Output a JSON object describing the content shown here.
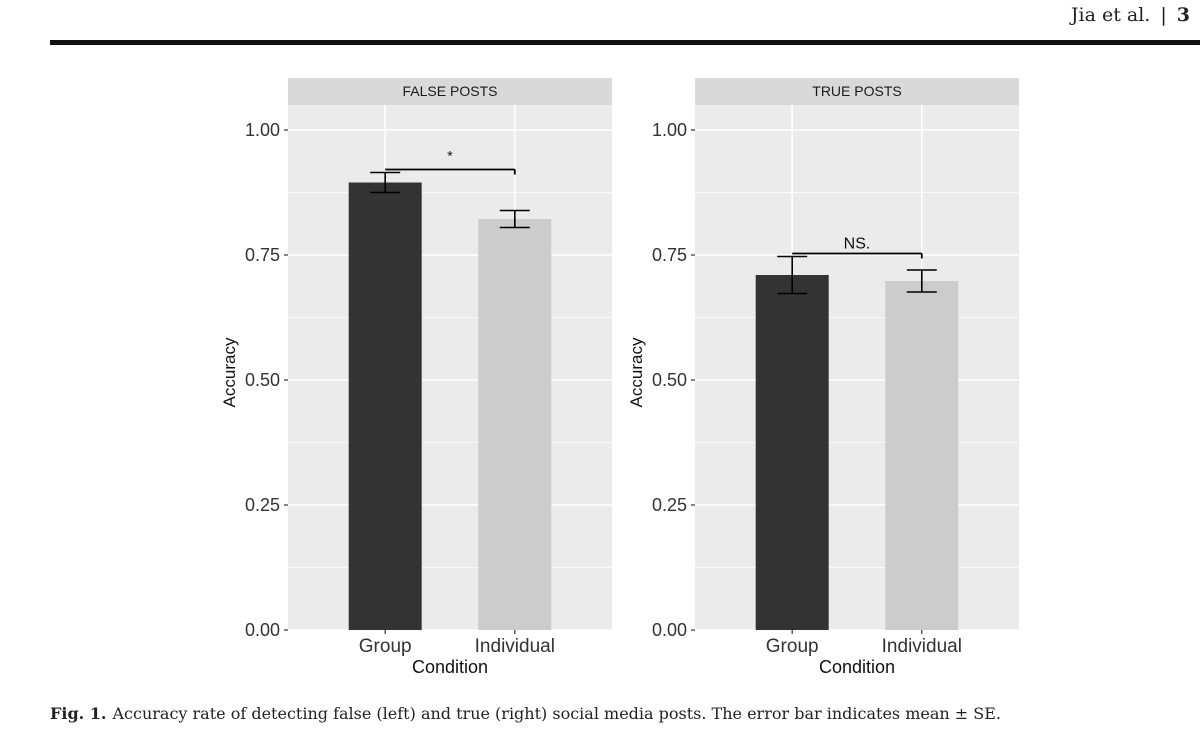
{
  "header": {
    "authors": "Jia et al.",
    "separator": "|",
    "page_number": "3"
  },
  "caption": {
    "label": "Fig. 1.",
    "text": "Accuracy rate of detecting false (left) and true (right) social media posts. The error bar indicates mean ± SE."
  },
  "colors": {
    "panel_bg": "#ebebeb",
    "strip_bg": "#d9d9d9",
    "grid": "#ffffff",
    "group_bar": "#333333",
    "individual_bar": "#cccccc"
  },
  "chart_data": [
    {
      "type": "bar",
      "title": "FALSE POSTS",
      "xlabel": "Condition",
      "ylabel": "Accuracy",
      "categories": [
        "Group",
        "Individual"
      ],
      "values": [
        0.895,
        0.822
      ],
      "error": [
        0.02,
        0.017
      ],
      "ylim": [
        0,
        1.05
      ],
      "yticks": [
        "0.00",
        "0.25",
        "0.50",
        "0.75",
        "1.00"
      ],
      "significance": "*",
      "grid": true,
      "legend": "none"
    },
    {
      "type": "bar",
      "title": "TRUE POSTS",
      "xlabel": "Condition",
      "ylabel": "Accuracy",
      "categories": [
        "Group",
        "Individual"
      ],
      "values": [
        0.71,
        0.698
      ],
      "error": [
        0.037,
        0.022
      ],
      "ylim": [
        0,
        1.05
      ],
      "yticks": [
        "0.00",
        "0.25",
        "0.50",
        "0.75",
        "1.00"
      ],
      "significance": "NS.",
      "grid": true,
      "legend": "none"
    }
  ]
}
